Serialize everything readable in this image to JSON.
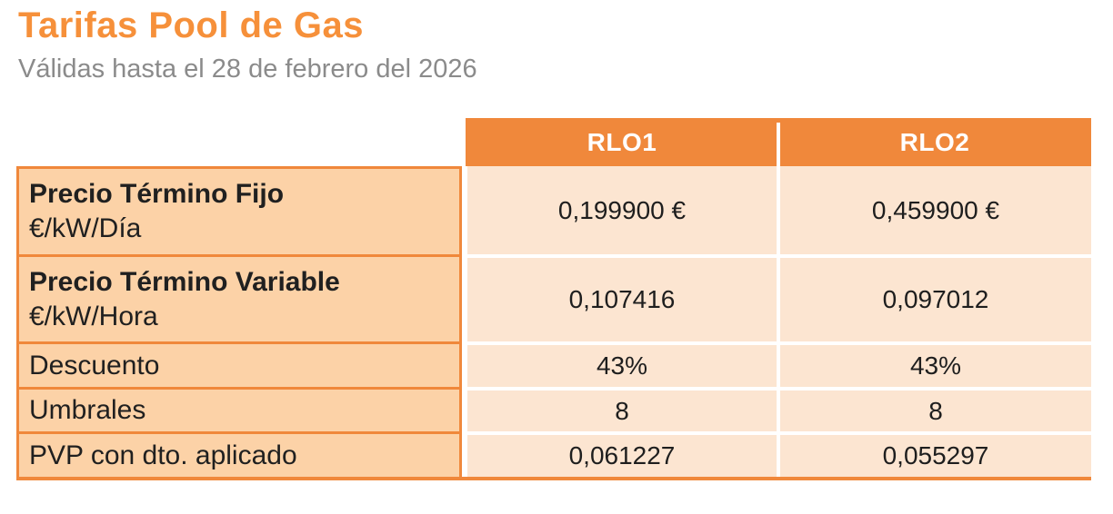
{
  "header": {
    "title": "Tarifas Pool de Gas",
    "subtitle": "Válidas hasta el 28 de febrero del 2026"
  },
  "colors": {
    "title_orange": "#F6903A",
    "table_orange": "#F0883B",
    "label_cell_bg": "#FCD2A7",
    "value_cell_bg": "#FCE5D1",
    "subtitle_gray": "#8B8B8B",
    "header_text": "#FFFFFF",
    "body_text": "#1E1E1E"
  },
  "table": {
    "columns": [
      "RLO1",
      "RLO2"
    ],
    "rows": [
      {
        "label": "Precio Término Fijo",
        "sublabel": "€/kW/Día",
        "values": [
          "0,199900 €",
          "0,459900 €"
        ]
      },
      {
        "label": "Precio Término Variable",
        "sublabel": "€/kW/Hora",
        "values": [
          "0,107416",
          "0,097012"
        ]
      },
      {
        "label": "Descuento",
        "sublabel": "",
        "values": [
          "43%",
          "43%"
        ]
      },
      {
        "label": "Umbrales",
        "sublabel": "",
        "values": [
          "8",
          "8"
        ]
      },
      {
        "label": "PVP con dto. aplicado",
        "sublabel": "",
        "values": [
          "0,061227",
          "0,055297"
        ]
      }
    ]
  },
  "chart_data": {
    "type": "table",
    "title": "Tarifas Pool de Gas",
    "subtitle": "Válidas hasta el 28 de febrero del 2026",
    "columns": [
      "",
      "RLO1",
      "RLO2"
    ],
    "cells": [
      [
        "Precio Término Fijo €/kW/Día",
        "0,199900 €",
        "0,459900 €"
      ],
      [
        "Precio Término Variable €/kW/Hora",
        "0,107416",
        "0,097012"
      ],
      [
        "Descuento",
        "43%",
        "43%"
      ],
      [
        "Umbrales",
        "8",
        "8"
      ],
      [
        "PVP con dto. aplicado",
        "0,061227",
        "0,055297"
      ]
    ]
  }
}
